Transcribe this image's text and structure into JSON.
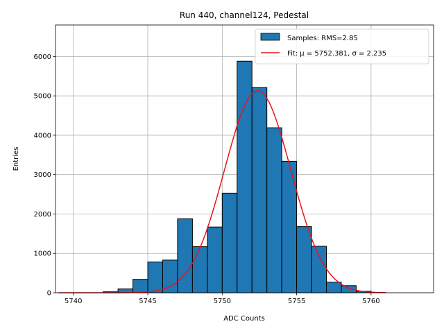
{
  "chart_data": {
    "type": "bar",
    "title": "Run 440, channel124, Pedestal",
    "xlabel": "ADC Counts",
    "ylabel": "Entries",
    "xlim": [
      5738.8,
      5764.2
    ],
    "ylim": [
      0,
      6800
    ],
    "xticks": [
      5740,
      5745,
      5750,
      5755,
      5760
    ],
    "yticks": [
      0,
      1000,
      2000,
      3000,
      4000,
      5000,
      6000
    ],
    "grid": true,
    "legend_position": "top-right",
    "colors": {
      "bars": "#1f77b4",
      "bar_edge": "#000000",
      "fit": "#e8141b",
      "grid": "#b0b0b0"
    },
    "histogram": {
      "name": "Samples: RMS=2.85",
      "bins": [
        {
          "x0": 5742.0,
          "x1": 5743.0,
          "count": 25
        },
        {
          "x0": 5743.0,
          "x1": 5744.0,
          "count": 100
        },
        {
          "x0": 5744.0,
          "x1": 5745.0,
          "count": 340
        },
        {
          "x0": 5745.0,
          "x1": 5746.0,
          "count": 780
        },
        {
          "x0": 5746.0,
          "x1": 5747.0,
          "count": 830
        },
        {
          "x0": 5747.0,
          "x1": 5748.0,
          "count": 1880
        },
        {
          "x0": 5748.0,
          "x1": 5749.0,
          "count": 1170
        },
        {
          "x0": 5749.0,
          "x1": 5750.0,
          "count": 1670
        },
        {
          "x0": 5750.0,
          "x1": 5751.0,
          "count": 2530
        },
        {
          "x0": 5751.0,
          "x1": 5752.0,
          "count": 5880
        },
        {
          "x0": 5752.0,
          "x1": 5753.0,
          "count": 5210
        },
        {
          "x0": 5753.0,
          "x1": 5754.0,
          "count": 4190
        },
        {
          "x0": 5754.0,
          "x1": 5755.0,
          "count": 3340
        },
        {
          "x0": 5755.0,
          "x1": 5756.0,
          "count": 1680
        },
        {
          "x0": 5756.0,
          "x1": 5757.0,
          "count": 1180
        },
        {
          "x0": 5757.0,
          "x1": 5758.0,
          "count": 270
        },
        {
          "x0": 5758.0,
          "x1": 5759.0,
          "count": 180
        },
        {
          "x0": 5759.0,
          "x1": 5760.0,
          "count": 40
        }
      ]
    },
    "fit": {
      "name": "Fit: μ = 5752.381, σ = 2.235",
      "type": "gaussian",
      "mu": 5752.381,
      "sigma": 2.235,
      "amplitude": 5130,
      "x_range": [
        5739.0,
        5761.0
      ]
    }
  }
}
